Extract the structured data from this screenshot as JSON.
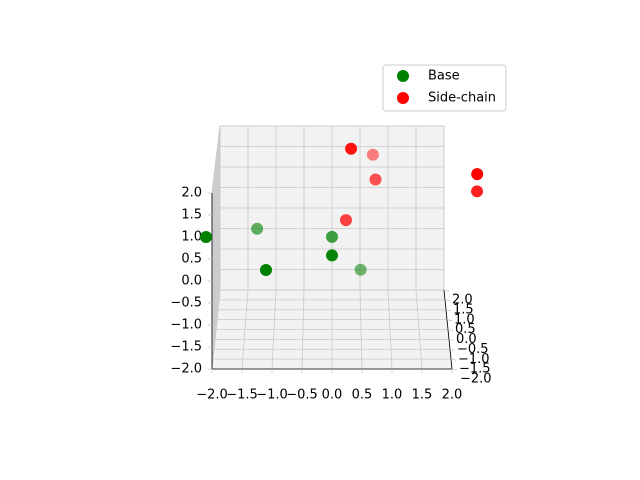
{
  "chart_data": {
    "type": "scatter3d",
    "series": [
      {
        "name": "Base",
        "color": "#008000",
        "x": [
          -2.1,
          -1.1,
          0.0,
          -1.3,
          0.0,
          0.5
        ],
        "y": [
          -2.0,
          -2.0,
          -1.8,
          0.4,
          -0.4,
          0.8
        ],
        "z": [
          1.0,
          0.25,
          0.5,
          0.2,
          0.35,
          -0.95
        ]
      },
      {
        "name": "Side-chain",
        "color": "#ff0000",
        "x": [
          0.32,
          0.72,
          0.75,
          0.24,
          2.42,
          2.45
        ],
        "y": [
          -1.6,
          1.2,
          0.0,
          -0.4,
          -2.0,
          -1.2
        ],
        "z": [
          2.86,
          1.63,
          1.53,
          0.74,
          2.43,
          1.73
        ]
      }
    ],
    "xlim": [
      -2,
      2
    ],
    "ylim": [
      -2,
      2
    ],
    "zlim": [
      -2,
      2
    ],
    "xticks": [
      {
        "value": -2,
        "label": "−2.0"
      },
      {
        "value": -1.5,
        "label": "−1.5"
      },
      {
        "value": -1,
        "label": "−1.0"
      },
      {
        "value": -0.5,
        "label": "−0.5"
      },
      {
        "value": 0,
        "label": "0.0"
      },
      {
        "value": 0.5,
        "label": "0.5"
      },
      {
        "value": 1,
        "label": "1.0"
      },
      {
        "value": 1.5,
        "label": "1.5"
      },
      {
        "value": 2,
        "label": "2.0"
      }
    ],
    "yticks": [
      {
        "value": -2,
        "label": "−2.0"
      },
      {
        "value": -1.5,
        "label": "−1.5"
      },
      {
        "value": -1,
        "label": "−1.0"
      },
      {
        "value": -0.5,
        "label": "−0.5"
      },
      {
        "value": 0,
        "label": "0.0"
      },
      {
        "value": 0.5,
        "label": "0.5"
      },
      {
        "value": 1,
        "label": "1.0"
      },
      {
        "value": 1.5,
        "label": "1.5"
      },
      {
        "value": 2,
        "label": "2.0"
      }
    ],
    "zticks": [
      {
        "value": -2,
        "label": "−2.0"
      },
      {
        "value": -1.5,
        "label": "−1.5"
      },
      {
        "value": -1,
        "label": "−1.0"
      },
      {
        "value": -0.5,
        "label": "−0.5"
      },
      {
        "value": 0,
        "label": "0.0"
      },
      {
        "value": 0.5,
        "label": "0.5"
      },
      {
        "value": 1,
        "label": "1.0"
      },
      {
        "value": 1.5,
        "label": "1.5"
      },
      {
        "value": 2,
        "label": "2.0"
      }
    ],
    "grid": true,
    "legend": "upper right"
  }
}
